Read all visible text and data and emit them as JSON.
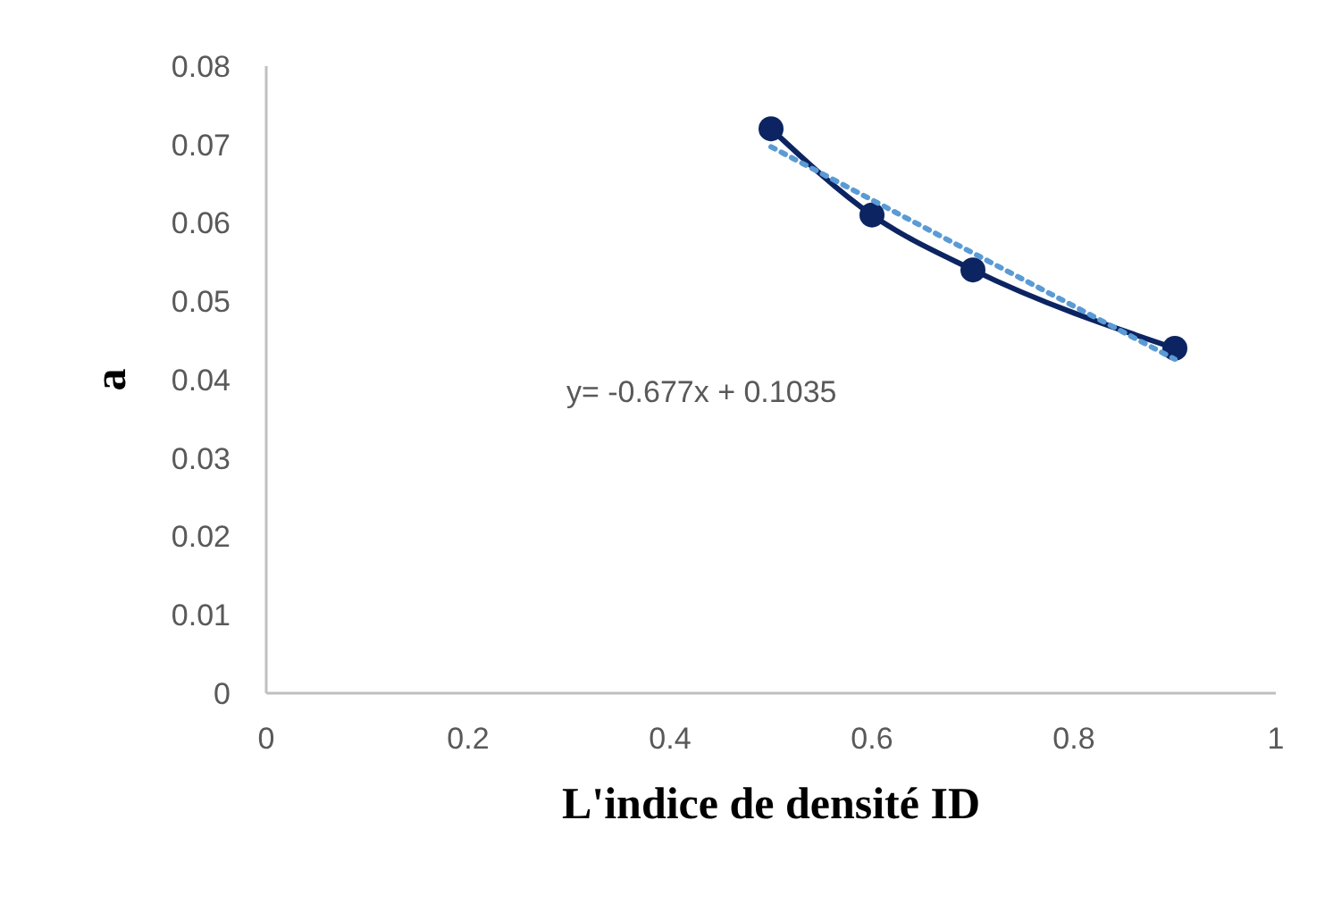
{
  "chart_data": {
    "type": "line",
    "xlabel": "L'indice de densité ID",
    "ylabel": "a",
    "xlim": [
      0,
      1
    ],
    "xticks": [
      0,
      0.2,
      0.4,
      0.6,
      0.8,
      1
    ],
    "ylim": [
      0,
      0.08
    ],
    "yticks": [
      0,
      0.01,
      0.02,
      0.03,
      0.04,
      0.05,
      0.06,
      0.07,
      0.08
    ],
    "grid": false,
    "series": [
      {
        "type": "line",
        "color": "#0c2461",
        "x": [
          0.5,
          0.6,
          0.7,
          0.9
        ],
        "values": [
          0.072,
          0.061,
          0.054,
          0.044
        ],
        "marker": "circle",
        "line_style": "solid"
      },
      {
        "type": "line",
        "color": "#5b9bd5",
        "x": [
          0.5,
          0.9
        ],
        "values": [
          0.0697,
          0.0426
        ],
        "marker": "none",
        "line_style": "dotted"
      }
    ],
    "annotations": [
      "y= -0.677x + 0.1035"
    ]
  }
}
